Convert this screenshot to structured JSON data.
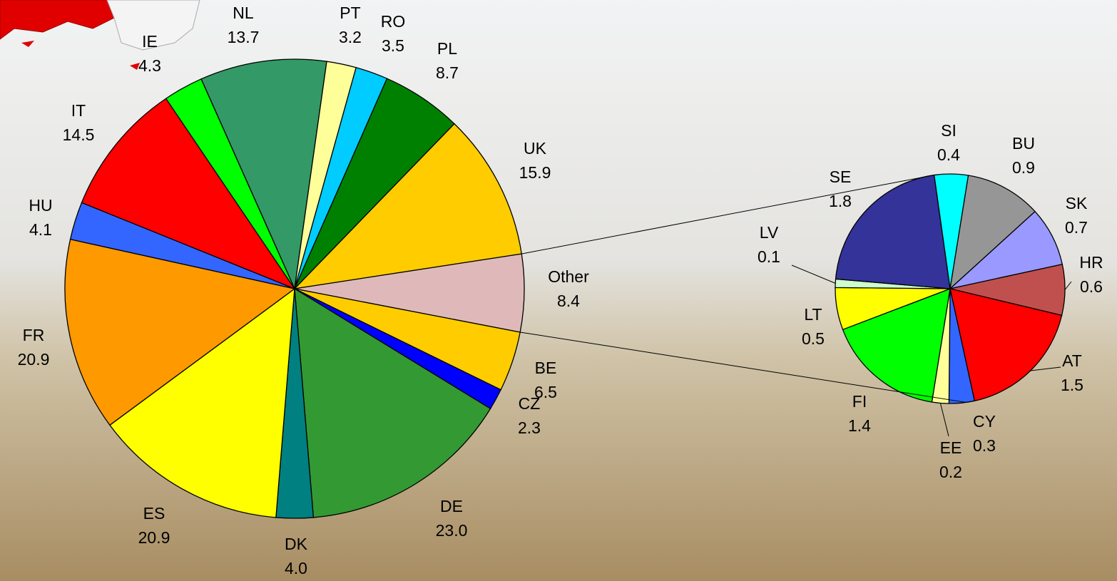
{
  "chart_data": [
    {
      "type": "pie",
      "categories": [
        "NL",
        "PT",
        "RO",
        "PL",
        "UK",
        "Other",
        "BE",
        "CZ",
        "DE",
        "DK",
        "ES",
        "FR",
        "HU",
        "IT",
        "IE"
      ],
      "values": [
        13.7,
        3.2,
        3.5,
        8.7,
        15.9,
        8.4,
        6.5,
        2.3,
        23.0,
        4.0,
        20.9,
        20.9,
        4.1,
        14.5,
        4.3
      ],
      "value_labels": [
        "13.7",
        "3.2",
        "3.5",
        "8.7",
        "15.9",
        "8.4",
        "6.5",
        "2.3",
        "23.0",
        "4.0",
        "20.9",
        "20.9",
        "4.1",
        "14.5",
        "4.3"
      ],
      "colors": [
        "#339966",
        "#ffff99",
        "#00ccff",
        "#008000",
        "#ffcc00",
        "#dfb9b9",
        "#ffcc00",
        "#0000ff",
        "#339933",
        "#008080",
        "#ffff00",
        "#ff9900",
        "#3366ff",
        "#ff0000",
        "#00ff00"
      ]
    },
    {
      "type": "pie",
      "categories": [
        "SI",
        "BU",
        "SK",
        "HR",
        "AT",
        "CY",
        "EE",
        "FI",
        "LT",
        "LV",
        "SE"
      ],
      "values": [
        0.4,
        0.9,
        0.7,
        0.6,
        1.5,
        0.3,
        0.2,
        1.4,
        0.5,
        0.1,
        1.8
      ],
      "value_labels": [
        "0.4",
        "0.9",
        "0.7",
        "0.6",
        "1.5",
        "0.3",
        "0.2",
        "1.4",
        "0.5",
        "0.1",
        "1.8"
      ],
      "colors": [
        "#00ffff",
        "#969696",
        "#9999ff",
        "#c0504d",
        "#ff0000",
        "#3366ff",
        "#ffff99",
        "#00ff00",
        "#ffff00",
        "#ccffcc",
        "#333399"
      ]
    }
  ]
}
